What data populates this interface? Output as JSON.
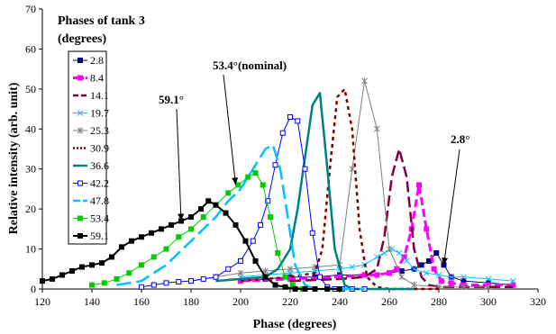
{
  "chart_data": {
    "type": "line",
    "title": "",
    "xlabel": "Phase (degrees)",
    "ylabel": "Relative intensity (arb. unit)",
    "xlim": [
      120,
      320
    ],
    "ylim": [
      0,
      70
    ],
    "xticks": [
      120,
      140,
      160,
      180,
      200,
      220,
      240,
      260,
      280,
      300,
      320
    ],
    "yticks": [
      0,
      10,
      20,
      30,
      40,
      50,
      60,
      70
    ],
    "grid": false,
    "legend": {
      "title_line1": "Phases of tank 3",
      "title_line2": "(degrees)",
      "placement": "top-left"
    },
    "annotations": [
      {
        "text": "59.1°",
        "target": [
          176,
          17
        ]
      },
      {
        "text": "53.4°(nominal)",
        "target": [
          198,
          26
        ]
      },
      {
        "text": "2.8°",
        "target": [
          282,
          6
        ]
      }
    ],
    "series": [
      {
        "name": "2.8",
        "color": "#000080",
        "dash": "",
        "width": 1,
        "marker": "square-filled",
        "x": [
          200,
          210,
          220,
          230,
          240,
          250,
          260,
          265,
          270,
          273,
          276,
          279,
          282,
          285,
          290,
          300,
          310
        ],
        "y": [
          2,
          2.5,
          3,
          3,
          3.5,
          3.5,
          4,
          4.5,
          5,
          6,
          7,
          9,
          6,
          3,
          2,
          1.5,
          1
        ]
      },
      {
        "name": "8.4",
        "color": "#ff00ff",
        "dash": "9,4",
        "width": 3,
        "marker": "square-filled",
        "x": [
          200,
          220,
          240,
          250,
          255,
          260,
          263,
          266,
          269,
          272,
          275,
          278,
          281,
          285,
          290,
          300,
          310
        ],
        "y": [
          2,
          2.5,
          3,
          3.5,
          3.5,
          4,
          5,
          8,
          15,
          26,
          15,
          5,
          2,
          1.5,
          1,
          1,
          1
        ]
      },
      {
        "name": "14.1",
        "color": "#800040",
        "dash": "12,5",
        "width": 2.5,
        "marker": "none",
        "x": [
          220,
          240,
          250,
          255,
          258,
          261,
          264,
          267,
          270,
          273,
          276,
          280,
          290,
          300,
          310
        ],
        "y": [
          2,
          2.5,
          3,
          5,
          13,
          28,
          35,
          28,
          10,
          3,
          1,
          0.5,
          0.5,
          0.5,
          0.5
        ]
      },
      {
        "name": "19.7",
        "color": "#00c0ff",
        "dash": "",
        "width": 1,
        "marker": "x",
        "x": [
          200,
          210,
          220,
          230,
          240,
          245,
          250,
          255,
          258,
          261,
          264,
          267,
          270,
          275,
          280,
          285,
          290,
          300,
          310
        ],
        "y": [
          3,
          3.5,
          4,
          4.5,
          5,
          5.5,
          6,
          8,
          9,
          10,
          9,
          7,
          5,
          4,
          3.5,
          3,
          3,
          2.5,
          2
        ]
      },
      {
        "name": "25.3",
        "color": "#808080",
        "dash": "",
        "width": 1,
        "marker": "star",
        "x": [
          180,
          190,
          200,
          210,
          220,
          230,
          240,
          245,
          250,
          255,
          260,
          265,
          270,
          280,
          290,
          300
        ],
        "y": [
          2,
          3,
          4,
          4.5,
          5,
          5.5,
          6,
          30,
          52,
          40,
          10,
          3,
          1,
          0.5,
          0.5,
          0.5
        ]
      },
      {
        "name": "30.9",
        "color": "#800000",
        "dash": "4,4",
        "width": 2.5,
        "marker": "none",
        "x": [
          200,
          210,
          220,
          225,
          230,
          233,
          236,
          239,
          242,
          245,
          248,
          251,
          255,
          260,
          270,
          280
        ],
        "y": [
          2,
          2.5,
          3,
          3.5,
          4,
          10,
          30,
          48,
          50,
          40,
          15,
          3,
          0.5,
          0,
          0,
          0
        ]
      },
      {
        "name": "36.6",
        "color": "#008080",
        "dash": "",
        "width": 2.5,
        "marker": "none",
        "x": [
          190,
          200,
          210,
          215,
          220,
          223,
          226,
          229,
          232,
          235,
          238,
          242,
          245,
          250,
          260,
          270
        ],
        "y": [
          2,
          2.5,
          3,
          5,
          10,
          20,
          33,
          46,
          49,
          30,
          10,
          1,
          0,
          0,
          0,
          0
        ]
      },
      {
        "name": "42.2",
        "color": "#0000ff",
        "dash": "",
        "width": 1,
        "marker": "square-open",
        "x": [
          160,
          165,
          170,
          175,
          180,
          185,
          190,
          195,
          200,
          205,
          208,
          211,
          214,
          217,
          220,
          223,
          226,
          229,
          232,
          235,
          238,
          241,
          245,
          250
        ],
        "y": [
          0.5,
          1,
          1.5,
          1.8,
          2,
          2.5,
          3,
          5,
          7,
          12,
          16,
          22,
          31,
          39,
          43,
          42,
          30,
          14,
          3,
          0.5,
          0,
          0,
          0,
          0
        ]
      },
      {
        "name": "47.8",
        "color": "#00c0ff",
        "dash": "16,6",
        "width": 2.5,
        "marker": "none",
        "x": [
          150,
          160,
          170,
          180,
          190,
          195,
          200,
          205,
          210,
          213,
          216,
          219,
          222,
          226,
          230,
          240,
          250
        ],
        "y": [
          1,
          2,
          6,
          12,
          18,
          22,
          25,
          30,
          35,
          36,
          30,
          18,
          6,
          1,
          0,
          0,
          0
        ]
      },
      {
        "name": "53.4",
        "color": "#00cc00",
        "dash": "",
        "width": 1,
        "marker": "square-filled",
        "x": [
          140,
          145,
          150,
          155,
          160,
          165,
          170,
          175,
          180,
          185,
          190,
          195,
          199,
          203,
          206,
          209,
          212,
          215,
          218,
          221,
          225,
          230
        ],
        "y": [
          1,
          1.5,
          2.5,
          4,
          6,
          8,
          10,
          13,
          15,
          18,
          21,
          24,
          26,
          28,
          29,
          26,
          18,
          9,
          3,
          1,
          0,
          0
        ]
      },
      {
        "name": "59.1",
        "color": "#000000",
        "dash": "",
        "width": 2,
        "marker": "square-filled",
        "x": [
          120,
          124,
          128,
          132,
          136,
          140,
          144,
          148,
          152,
          156,
          160,
          164,
          168,
          172,
          176,
          180,
          184,
          187,
          190,
          194,
          198,
          202,
          206,
          210,
          214,
          218,
          222,
          226,
          230,
          235,
          240
        ],
        "y": [
          2,
          2.5,
          3.5,
          4.5,
          5.5,
          6,
          6.5,
          8,
          10.5,
          12,
          13,
          14,
          15,
          16,
          17,
          18,
          20,
          22,
          21,
          19,
          16,
          12,
          7,
          3,
          1,
          0.5,
          0,
          0,
          0,
          0,
          0
        ]
      }
    ]
  }
}
